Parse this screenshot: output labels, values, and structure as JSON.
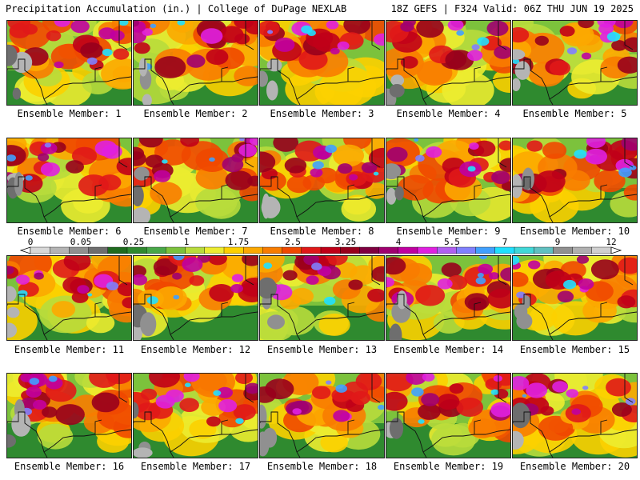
{
  "header": {
    "title_left": "Precipitation Accumulation (in.) | College of DuPage NEXLAB",
    "title_right": "18Z GEFS | F324 Valid: 06Z THU JUN 19 2025"
  },
  "legend": {
    "ticks": [
      "0",
      "0.05",
      "0.25",
      "1",
      "1.75",
      "2.5",
      "3.25",
      "4",
      "5.5",
      "7",
      "9",
      "12"
    ],
    "colors": [
      "#d8d8d8",
      "#b4b4b4",
      "#909090",
      "#6e6e6e",
      "#1f6b1f",
      "#2f8a2f",
      "#48a848",
      "#7cc23c",
      "#b8dc3c",
      "#ecec30",
      "#fcd000",
      "#fca800",
      "#f87c00",
      "#f04800",
      "#e01818",
      "#c00018",
      "#98001c",
      "#800040",
      "#a00070",
      "#c000a0",
      "#e020e0",
      "#b060f0",
      "#8080ff",
      "#40a0ff",
      "#20e0ff",
      "#40d8d8",
      "#60c0c0",
      "#909090",
      "#b0b0b0",
      "#d0d0d0"
    ]
  },
  "panels": [
    {
      "label": "Ensemble Member: 1"
    },
    {
      "label": "Ensemble Member: 2"
    },
    {
      "label": "Ensemble Member: 3"
    },
    {
      "label": "Ensemble Member: 4"
    },
    {
      "label": "Ensemble Member: 5"
    },
    {
      "label": "Ensemble Member: 6"
    },
    {
      "label": "Ensemble Member: 7"
    },
    {
      "label": "Ensemble Member: 8"
    },
    {
      "label": "Ensemble Member: 9"
    },
    {
      "label": "Ensemble Member: 10"
    },
    {
      "label": "Ensemble Member: 11"
    },
    {
      "label": "Ensemble Member: 12"
    },
    {
      "label": "Ensemble Member: 13"
    },
    {
      "label": "Ensemble Member: 14"
    },
    {
      "label": "Ensemble Member: 15"
    },
    {
      "label": "Ensemble Member: 16"
    },
    {
      "label": "Ensemble Member: 17"
    },
    {
      "label": "Ensemble Member: 18"
    },
    {
      "label": "Ensemble Member: 19"
    },
    {
      "label": "Ensemble Member: 20"
    }
  ]
}
